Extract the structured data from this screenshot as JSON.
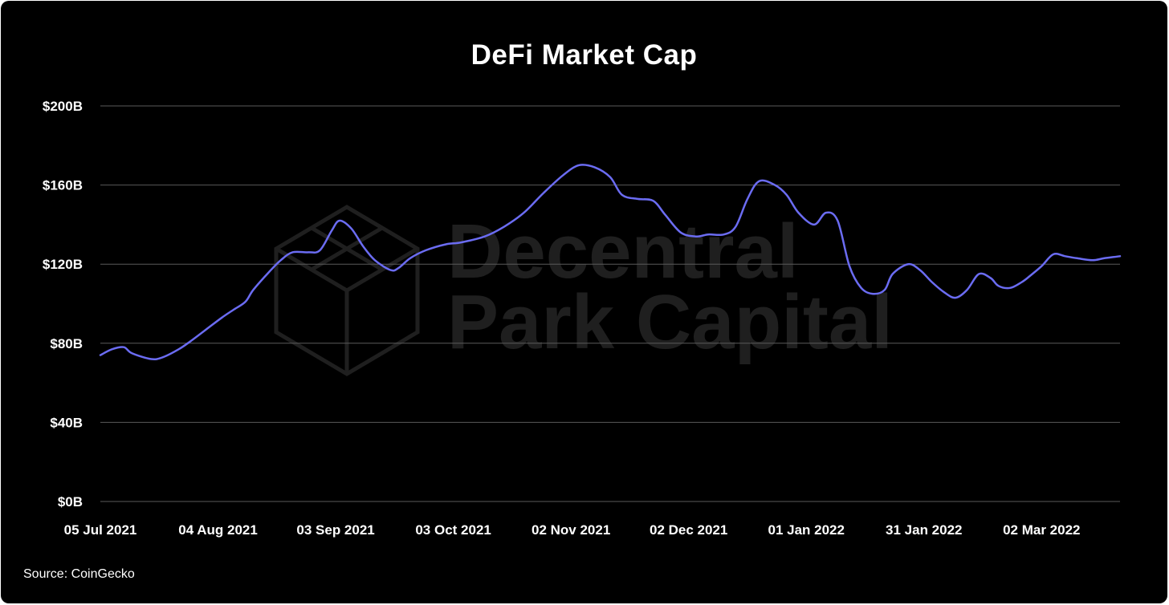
{
  "title": "DeFi Market Cap",
  "source": "Source: CoinGecko",
  "watermark": {
    "line1": "Decentral",
    "line2": "Park Capital"
  },
  "colors": {
    "background": "#000000",
    "line": "#6b6cf2",
    "grid": "#5a5a5a",
    "text": "#ffffff",
    "watermark": "#1f1f1f"
  },
  "chart_data": {
    "type": "line",
    "title": "DeFi Market Cap",
    "xlabel": "",
    "ylabel": "",
    "ylim": [
      0,
      200
    ],
    "yticks": [
      0,
      40,
      80,
      120,
      160,
      200
    ],
    "ytick_labels": [
      "$0B",
      "$40B",
      "$80B",
      "$120B",
      "$160B",
      "$200B"
    ],
    "xlim": [
      "2021-07-05",
      "2022-03-22"
    ],
    "xticks": [
      "2021-07-05",
      "2021-08-04",
      "2021-09-03",
      "2021-10-03",
      "2021-11-02",
      "2021-12-02",
      "2022-01-01",
      "2022-01-31",
      "2022-03-02"
    ],
    "xtick_labels": [
      "05 Jul 2021",
      "04 Aug 2021",
      "03 Sep 2021",
      "03 Oct 2021",
      "02 Nov 2021",
      "02 Dec 2021",
      "01 Jan 2022",
      "31 Jan 2022",
      "02 Mar 2022"
    ],
    "grid": true,
    "series": [
      {
        "x": [
          "2021-07-05",
          "2021-07-08",
          "2021-07-11",
          "2021-07-13",
          "2021-07-18",
          "2021-07-21",
          "2021-07-25",
          "2021-07-28",
          "2021-08-01",
          "2021-08-05",
          "2021-08-08",
          "2021-08-11",
          "2021-08-13",
          "2021-08-17",
          "2021-08-20",
          "2021-08-23",
          "2021-08-27",
          "2021-08-30",
          "2021-09-02",
          "2021-09-04",
          "2021-09-07",
          "2021-09-10",
          "2021-09-13",
          "2021-09-17",
          "2021-09-19",
          "2021-09-22",
          "2021-09-26",
          "2021-10-01",
          "2021-10-05",
          "2021-10-11",
          "2021-10-16",
          "2021-10-21",
          "2021-10-26",
          "2021-10-31",
          "2021-11-04",
          "2021-11-08",
          "2021-11-12",
          "2021-11-15",
          "2021-11-19",
          "2021-11-23",
          "2021-11-26",
          "2021-11-30",
          "2021-12-04",
          "2021-12-07",
          "2021-12-11",
          "2021-12-14",
          "2021-12-17",
          "2021-12-20",
          "2021-12-24",
          "2021-12-27",
          "2021-12-30",
          "2022-01-03",
          "2022-01-06",
          "2022-01-09",
          "2022-01-12",
          "2022-01-15",
          "2022-01-18",
          "2022-01-21",
          "2022-01-23",
          "2022-01-27",
          "2022-01-30",
          "2022-02-02",
          "2022-02-05",
          "2022-02-08",
          "2022-02-11",
          "2022-02-14",
          "2022-02-17",
          "2022-02-19",
          "2022-02-22",
          "2022-02-25",
          "2022-02-27",
          "2022-03-02",
          "2022-03-05",
          "2022-03-08",
          "2022-03-11",
          "2022-03-15",
          "2022-03-18",
          "2022-03-22"
        ],
        "y": [
          74,
          77,
          78,
          75,
          72,
          73,
          77,
          81,
          87,
          93,
          97,
          101,
          107,
          116,
          122,
          126,
          126,
          127,
          137,
          142,
          138,
          129,
          122,
          117,
          118,
          123,
          127,
          130,
          131,
          134,
          139,
          146,
          156,
          165,
          170,
          169,
          164,
          155,
          153,
          152,
          145,
          136,
          134,
          135,
          135,
          139,
          153,
          162,
          160,
          155,
          146,
          140,
          146,
          142,
          119,
          108,
          105,
          107,
          115,
          120,
          117,
          111,
          106,
          103,
          107,
          115,
          113,
          109,
          108,
          111,
          114,
          119,
          125,
          124,
          123,
          122,
          123,
          124
        ]
      }
    ]
  }
}
